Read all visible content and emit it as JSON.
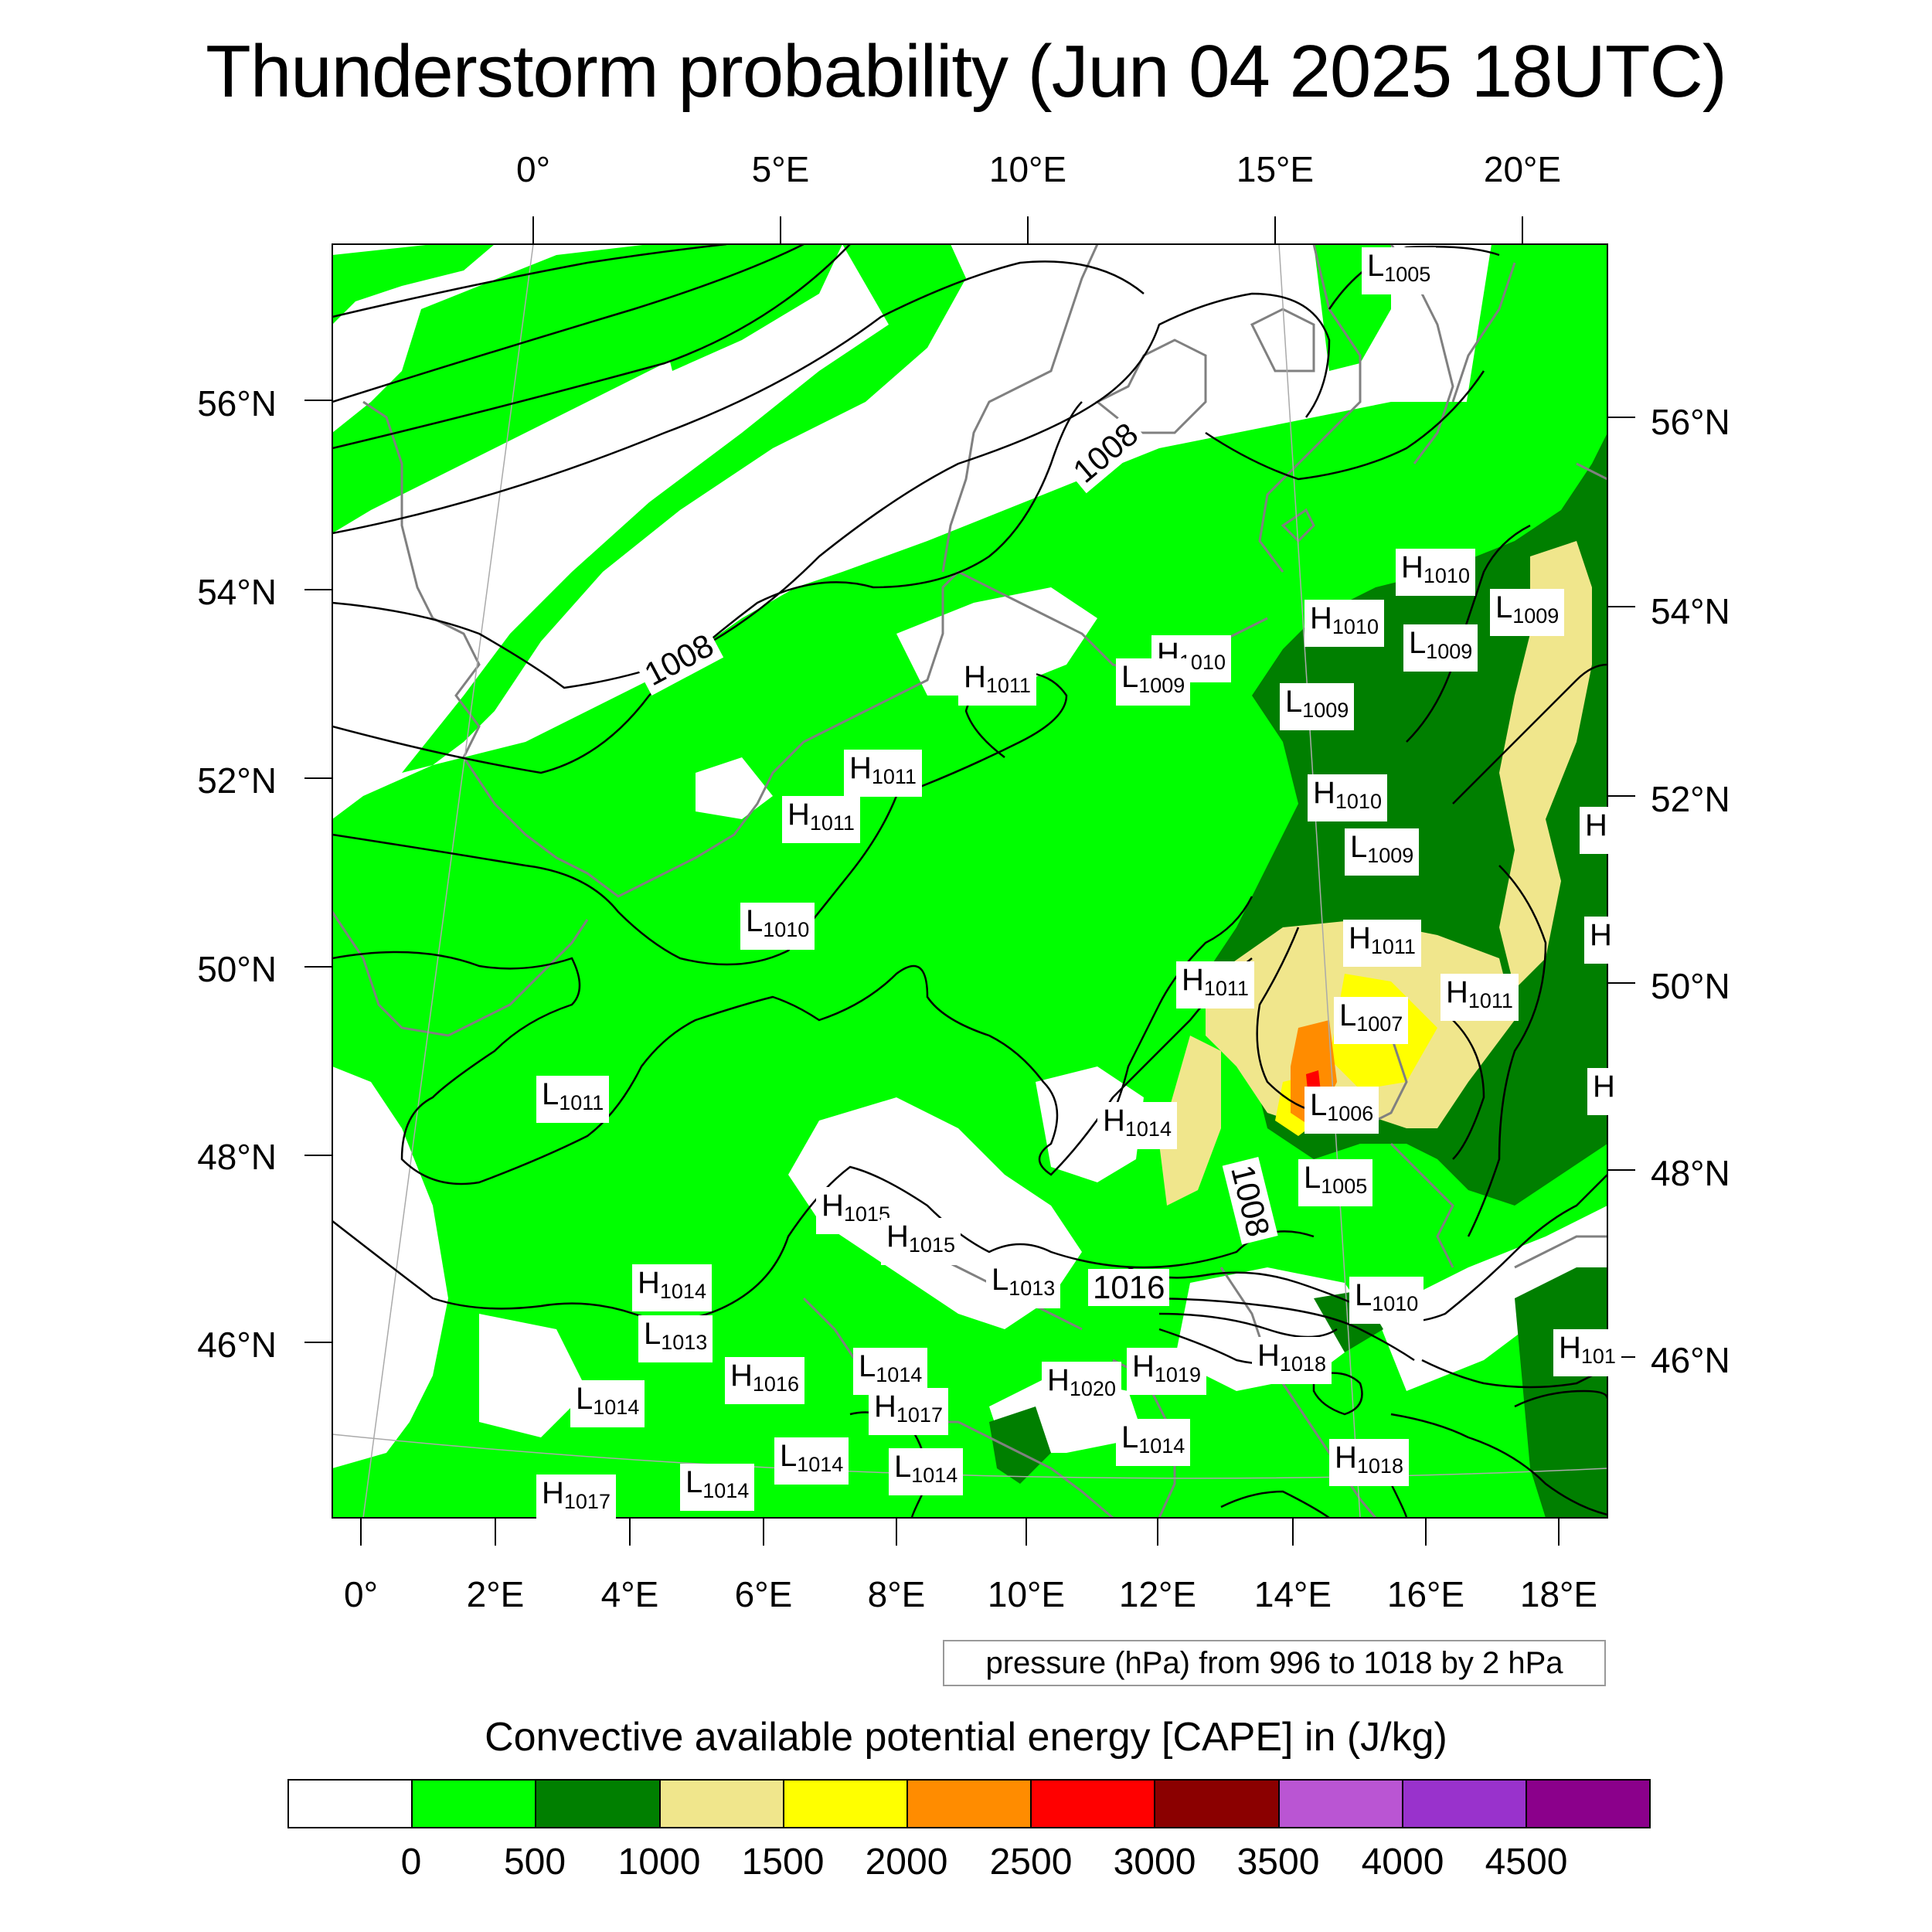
{
  "title": "Thunderstorm probability (Jun 04 2025 18UTC)",
  "axes": {
    "top_lon_labels": [
      "0°",
      "5°E",
      "10°E",
      "15°E",
      "20°E"
    ],
    "bottom_lon_labels": [
      "0°",
      "2°E",
      "4°E",
      "6°E",
      "8°E",
      "10°E",
      "12°E",
      "14°E",
      "16°E",
      "18°E"
    ],
    "left_lat_labels": [
      "56°N",
      "54°N",
      "52°N",
      "50°N",
      "48°N",
      "46°N"
    ],
    "right_lat_labels": [
      "56°N",
      "54°N",
      "52°N",
      "50°N",
      "48°N",
      "46°N"
    ]
  },
  "contour_labels": [
    "1008",
    "1008",
    "1016",
    "1008"
  ],
  "pressure_centers": [
    {
      "type": "L",
      "value": "1005"
    },
    {
      "type": "H",
      "value": "1010"
    },
    {
      "type": "L",
      "value": "1009"
    },
    {
      "type": "H",
      "value": "1010"
    },
    {
      "type": "L",
      "value": "1009"
    },
    {
      "type": "H",
      "value": "1010"
    },
    {
      "type": "L",
      "value": "1009"
    },
    {
      "type": "H",
      "value": "1011"
    },
    {
      "type": "L",
      "value": "1009"
    },
    {
      "type": "H",
      "value": "1010"
    },
    {
      "type": "L",
      "value": "1009"
    },
    {
      "type": "H",
      "value": "1011"
    },
    {
      "type": "H",
      "value": "1011"
    },
    {
      "type": "L",
      "value": "1010"
    },
    {
      "type": "H",
      "value": "1011"
    },
    {
      "type": "H",
      "value": "1011"
    },
    {
      "type": "H",
      "value": "1011"
    },
    {
      "type": "L",
      "value": "1007"
    },
    {
      "type": "L",
      "value": "1011"
    },
    {
      "type": "L",
      "value": "1006"
    },
    {
      "type": "H",
      "value": "1014"
    },
    {
      "type": "L",
      "value": "1005"
    },
    {
      "type": "H",
      "value": "1015"
    },
    {
      "type": "H",
      "value": "1015"
    },
    {
      "type": "H",
      "value": "1014"
    },
    {
      "type": "L",
      "value": "1013"
    },
    {
      "type": "L",
      "value": "1013"
    },
    {
      "type": "L",
      "value": "1010"
    },
    {
      "type": "H",
      "value": "1016"
    },
    {
      "type": "L",
      "value": "1014"
    },
    {
      "type": "H",
      "value": "1017"
    },
    {
      "type": "H",
      "value": "1020"
    },
    {
      "type": "H",
      "value": "1019"
    },
    {
      "type": "H",
      "value": "1018"
    },
    {
      "type": "L",
      "value": "1014"
    },
    {
      "type": "L",
      "value": "1014"
    },
    {
      "type": "L",
      "value": "1014"
    },
    {
      "type": "L",
      "value": "1014"
    },
    {
      "type": "L",
      "value": "1014"
    },
    {
      "type": "H",
      "value": "1018"
    },
    {
      "type": "H",
      "value": "1017"
    },
    {
      "type": "H",
      "value": "101"
    },
    {
      "type": "H",
      "value": ""
    },
    {
      "type": "H",
      "value": ""
    },
    {
      "type": "H",
      "value": ""
    }
  ],
  "pressure_note": "pressure (hPa) from 996 to 1018 by 2 hPa",
  "colorbar": {
    "title": "Convective available potential energy [CAPE] in (J/kg)",
    "colors": [
      "#ffffff",
      "#00ff00",
      "#007f00",
      "#f0e68c",
      "#ffff00",
      "#ff8c00",
      "#ff0000",
      "#8b0000",
      "#ba55d3",
      "#9932cc",
      "#8b008b"
    ],
    "tick_labels": [
      "0",
      "500",
      "1000",
      "1500",
      "2000",
      "2500",
      "3000",
      "3500",
      "4000",
      "4500"
    ]
  }
}
